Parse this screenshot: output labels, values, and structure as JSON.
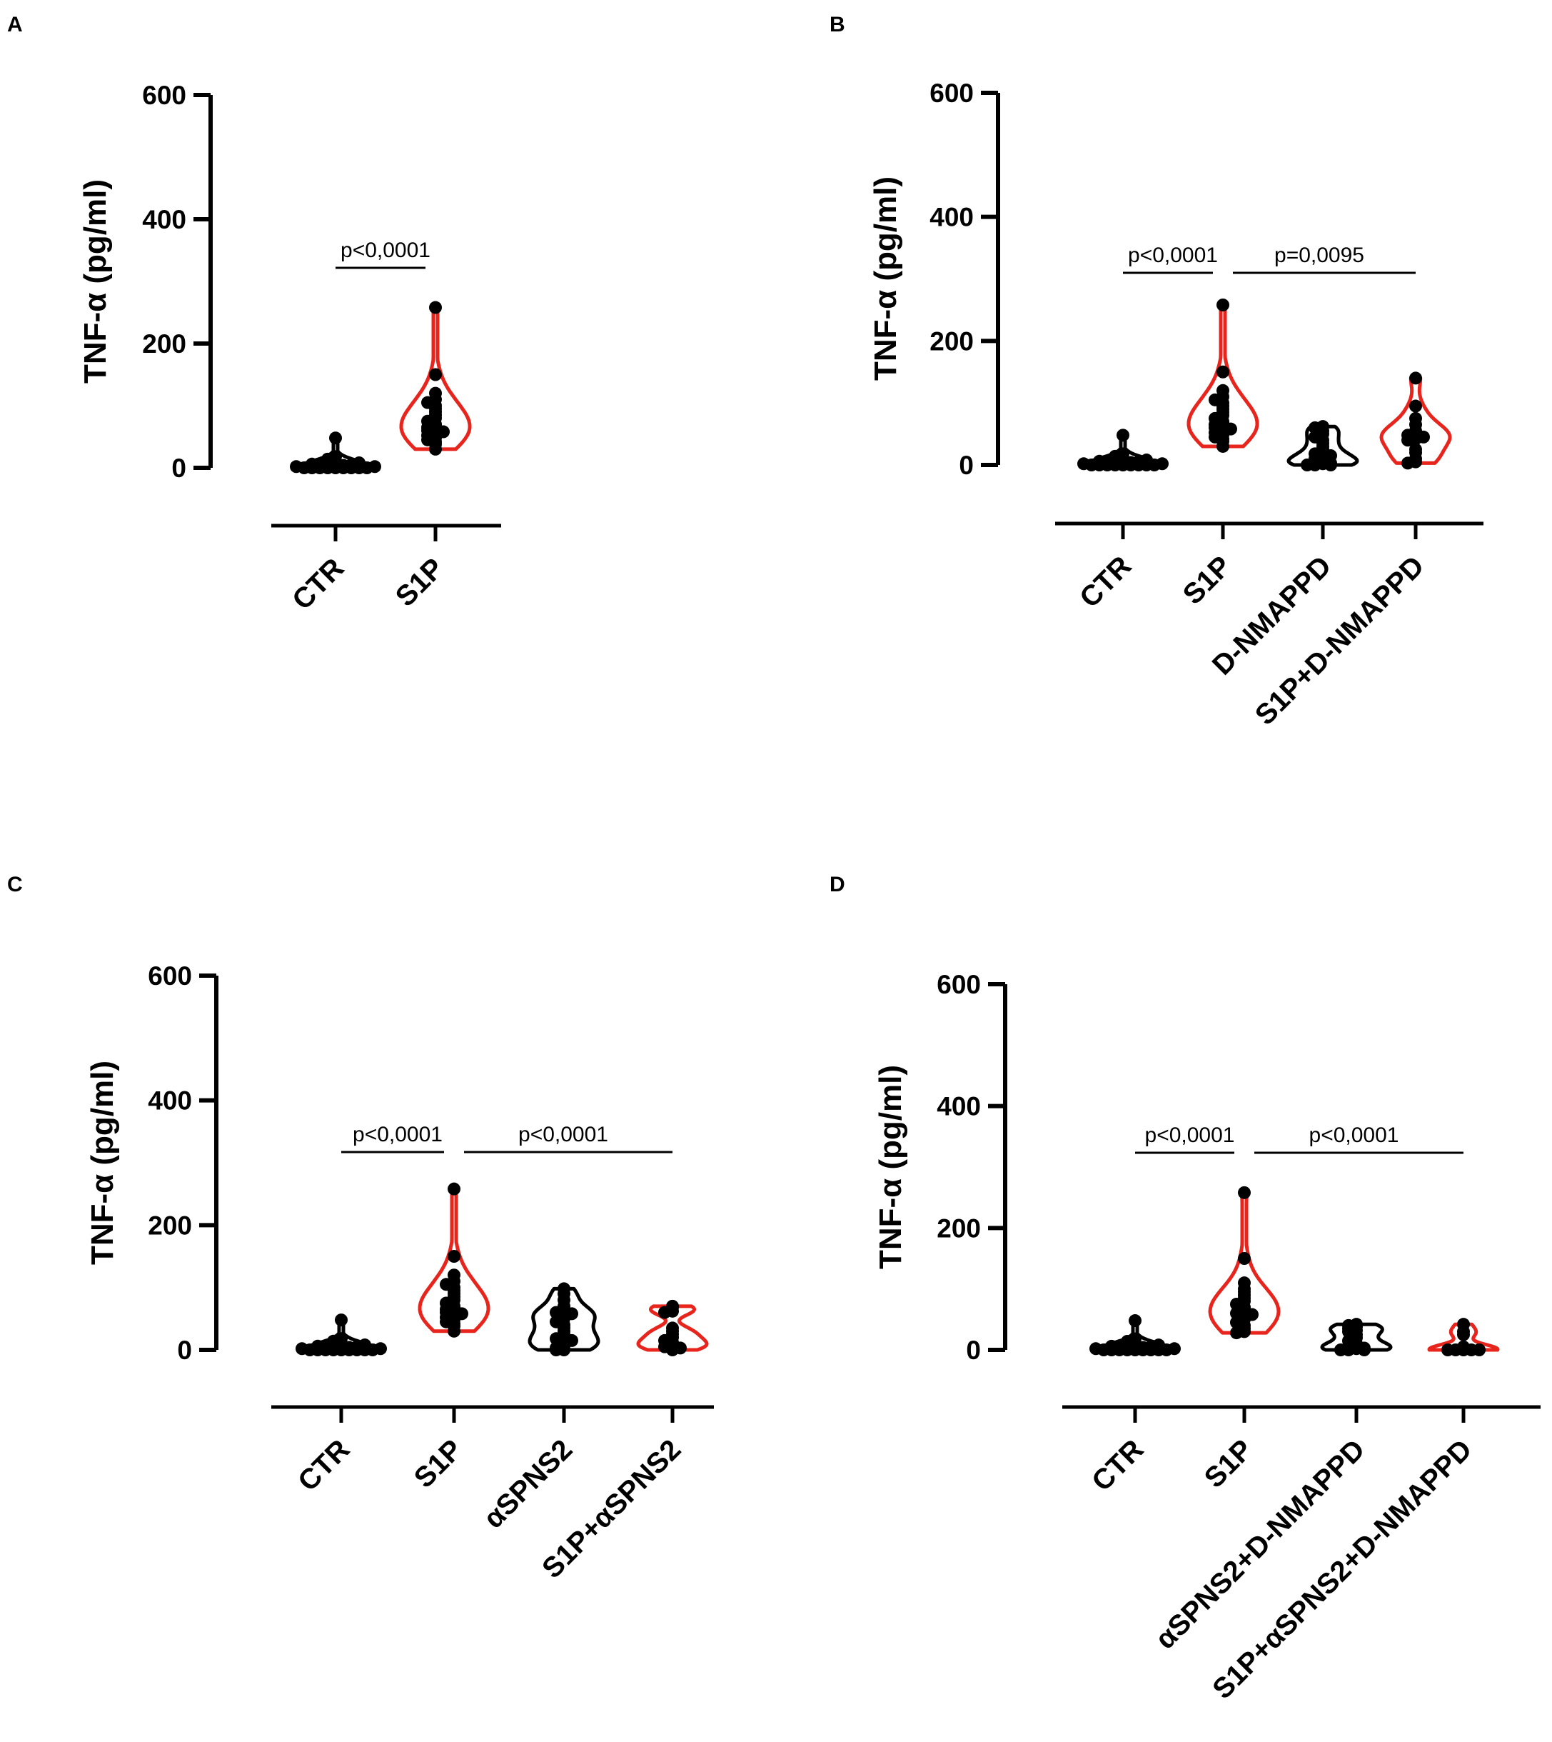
{
  "chart_data": [
    {
      "panel": "A",
      "type": "violin",
      "ylabel": "TNF-α (pg/ml)",
      "ylim": [
        0,
        600
      ],
      "yticks": [
        "0",
        "200",
        "400",
        "600"
      ],
      "categories": [
        "CTR",
        "S1P"
      ],
      "violin_color": {
        "CTR": "#000000",
        "S1P": "#e8251d"
      },
      "points": {
        "CTR": [
          0,
          0,
          0,
          0,
          0,
          0,
          0,
          0,
          0,
          2,
          2,
          3,
          3,
          4,
          5,
          5,
          6,
          8,
          10,
          14,
          18,
          48
        ],
        "S1P": [
          258,
          150,
          120,
          110,
          105,
          100,
          95,
          90,
          85,
          80,
          75,
          70,
          68,
          65,
          62,
          60,
          58,
          55,
          52,
          48,
          45,
          42,
          38,
          30
        ]
      },
      "comparisons": [
        {
          "from": "CTR",
          "to": "S1P",
          "label": "p<0,0001"
        }
      ]
    },
    {
      "panel": "B",
      "type": "violin",
      "ylabel": "TNF-α (pg/ml)",
      "ylim": [
        0,
        600
      ],
      "yticks": [
        "0",
        "200",
        "400",
        "600"
      ],
      "categories": [
        "CTR",
        "S1P",
        "D-NMAPPD",
        "S1P+D-NMAPPD"
      ],
      "violin_color": {
        "CTR": "#000000",
        "S1P": "#e8251d",
        "D-NMAPPD": "#000000",
        "S1P+D-NMAPPD": "#e8251d"
      },
      "points": {
        "CTR": [
          0,
          0,
          0,
          0,
          0,
          0,
          0,
          0,
          0,
          2,
          2,
          3,
          3,
          4,
          5,
          5,
          6,
          8,
          10,
          14,
          18,
          48
        ],
        "S1P": [
          258,
          150,
          120,
          110,
          105,
          100,
          95,
          90,
          85,
          80,
          75,
          70,
          68,
          65,
          62,
          60,
          58,
          55,
          52,
          48,
          45,
          42,
          38,
          30
        ],
        "D-NMAPPD": [
          62,
          60,
          55,
          50,
          45,
          40,
          35,
          30,
          25,
          20,
          18,
          15,
          12,
          10,
          8,
          5,
          3,
          2,
          0,
          0,
          0
        ],
        "S1P+D-NMAPPD": [
          140,
          95,
          75,
          65,
          55,
          50,
          48,
          45,
          42,
          40,
          25,
          20,
          10,
          5,
          3
        ]
      },
      "comparisons": [
        {
          "from": "CTR",
          "to": "S1P",
          "label": "p<0,0001"
        },
        {
          "from": "S1P",
          "to": "S1P+D-NMAPPD",
          "label": "p=0,0095"
        }
      ]
    },
    {
      "panel": "C",
      "type": "violin",
      "ylabel": "TNF-α (pg/ml)",
      "ylim": [
        0,
        600
      ],
      "yticks": [
        "0",
        "200",
        "400",
        "600"
      ],
      "categories": [
        "CTR",
        "S1P",
        "αSPNS2",
        "S1P+αSPNS2"
      ],
      "violin_color": {
        "CTR": "#000000",
        "S1P": "#e8251d",
        "αSPNS2": "#000000",
        "S1P+αSPNS2": "#e8251d"
      },
      "points": {
        "CTR": [
          0,
          0,
          0,
          0,
          0,
          0,
          0,
          0,
          0,
          2,
          2,
          3,
          3,
          4,
          5,
          5,
          6,
          8,
          10,
          14,
          18,
          48
        ],
        "S1P": [
          258,
          150,
          120,
          110,
          105,
          100,
          95,
          90,
          85,
          80,
          75,
          70,
          68,
          65,
          62,
          60,
          58,
          55,
          52,
          48,
          45,
          42,
          38,
          30
        ],
        "αSPNS2": [
          98,
          90,
          80,
          70,
          62,
          60,
          58,
          55,
          50,
          45,
          40,
          35,
          30,
          25,
          20,
          18,
          15,
          10,
          5,
          3,
          0,
          0
        ],
        "S1P+αSPNS2": [
          70,
          68,
          62,
          60,
          35,
          30,
          25,
          20,
          15,
          12,
          8,
          5,
          3,
          0
        ]
      },
      "comparisons": [
        {
          "from": "CTR",
          "to": "S1P",
          "label": "p<0,0001"
        },
        {
          "from": "S1P",
          "to": "S1P+αSPNS2",
          "label": "p<0,0001"
        }
      ]
    },
    {
      "panel": "D",
      "type": "violin",
      "ylabel": "TNF-α (pg/ml)",
      "ylim": [
        0,
        600
      ],
      "yticks": [
        "0",
        "200",
        "400",
        "600"
      ],
      "categories": [
        "CTR",
        "S1P",
        "αSPNS2+D-NMAPPD",
        "S1P+αSPNS2+D-NMAPPD"
      ],
      "violin_color": {
        "CTR": "#000000",
        "S1P": "#e8251d",
        "αSPNS2+D-NMAPPD": "#000000",
        "S1P+αSPNS2+D-NMAPPD": "#e8251d"
      },
      "points": {
        "CTR": [
          0,
          0,
          0,
          0,
          0,
          0,
          0,
          0,
          0,
          2,
          2,
          3,
          3,
          4,
          5,
          5,
          6,
          8,
          10,
          14,
          18,
          48
        ],
        "S1P": [
          258,
          150,
          110,
          100,
          95,
          90,
          85,
          80,
          75,
          70,
          65,
          62,
          60,
          58,
          55,
          50,
          45,
          40,
          35,
          30,
          28
        ],
        "αSPNS2+D-NMAPPD": [
          42,
          40,
          38,
          35,
          32,
          30,
          25,
          20,
          15,
          10,
          8,
          5,
          3,
          2,
          0,
          0,
          0
        ],
        "S1P+αSPNS2+D-NMAPPD": [
          42,
          30,
          25,
          5,
          0,
          0,
          0,
          0,
          0
        ]
      },
      "comparisons": [
        {
          "from": "CTR",
          "to": "S1P",
          "label": "p<0,0001"
        },
        {
          "from": "S1P",
          "to": "S1P+αSPNS2+D-NMAPPD",
          "label": "p<0,0001"
        }
      ]
    }
  ]
}
